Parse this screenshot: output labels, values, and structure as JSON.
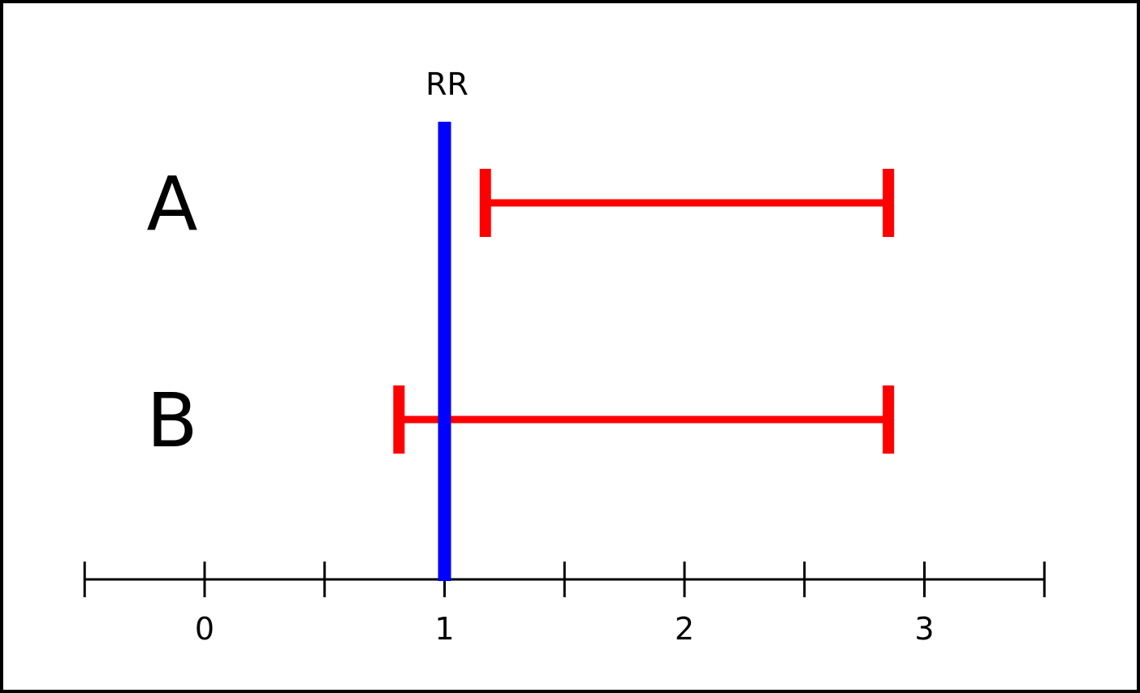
{
  "chart_data": {
    "type": "errorbar",
    "title": "",
    "reference_line": {
      "label": "RR",
      "x": 1,
      "color": "#0000ff"
    },
    "rows": [
      {
        "label": "A",
        "low": 1.17,
        "high": 2.85,
        "color": "#ff0000"
      },
      {
        "label": "B",
        "low": 0.81,
        "high": 2.85,
        "color": "#ff0000"
      }
    ],
    "xlim": [
      -0.5,
      3.5
    ],
    "major_ticks": [
      -0.5,
      0,
      0.5,
      1,
      1.5,
      2,
      2.5,
      3,
      3.5
    ],
    "tick_labels": [
      {
        "value": 0,
        "text": "0"
      },
      {
        "value": 1,
        "text": "1"
      },
      {
        "value": 2,
        "text": "2"
      },
      {
        "value": 3,
        "text": "3"
      }
    ],
    "grid": false
  }
}
